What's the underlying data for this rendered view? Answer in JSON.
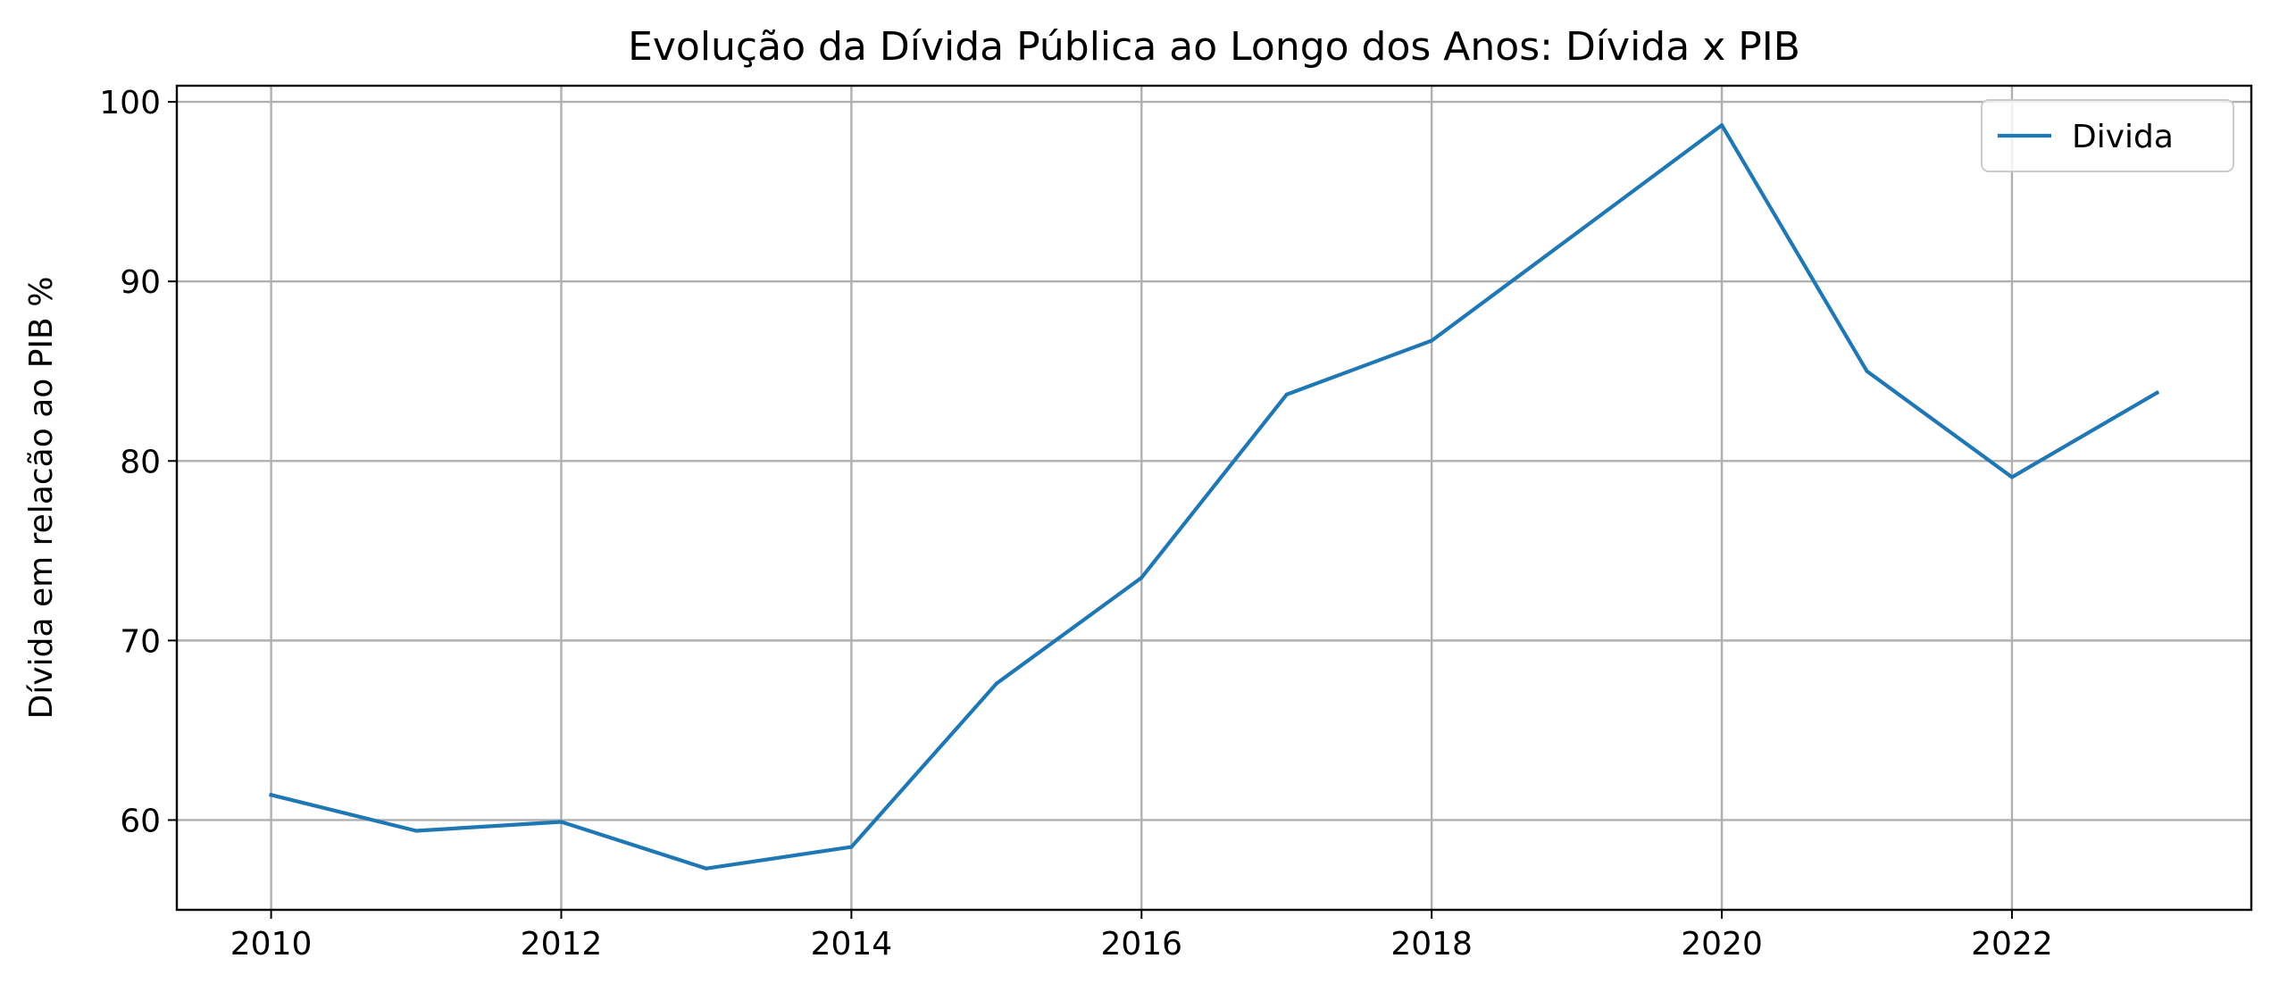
{
  "chart_data": {
    "type": "line",
    "title": "Evolução da Dívida Pública ao Longo dos Anos: Dívida x PIB",
    "xlabel": "",
    "ylabel": "Dívida em relacão ao PIB %",
    "x": [
      2010,
      2011,
      2012,
      2013,
      2014,
      2015,
      2016,
      2017,
      2018,
      2019,
      2020,
      2021,
      2022,
      2023
    ],
    "series": [
      {
        "name": "Divida",
        "color": "#1f77b4",
        "values": [
          61.4,
          59.4,
          59.9,
          57.3,
          58.5,
          67.6,
          73.5,
          83.7,
          86.7,
          92.7,
          98.7,
          85.0,
          79.1,
          83.8
        ]
      }
    ],
    "xlim": [
      2009.35,
      2023.65
    ],
    "ylim": [
      55.0,
      100.9
    ],
    "xticks": [
      2010,
      2012,
      2014,
      2016,
      2018,
      2020,
      2022
    ],
    "yticks": [
      60,
      70,
      80,
      90,
      100
    ],
    "grid": true,
    "legend_position": "upper right"
  }
}
